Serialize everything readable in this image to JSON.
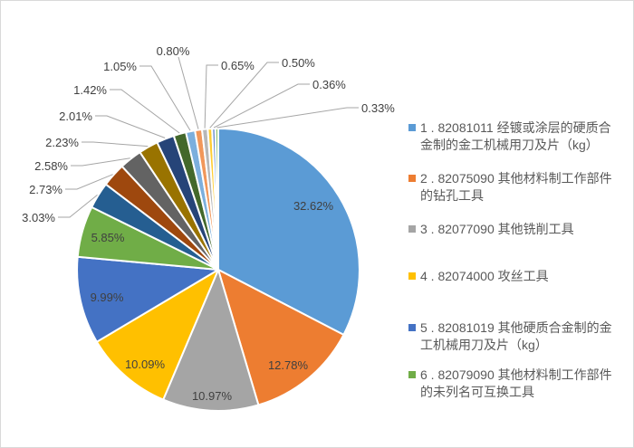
{
  "colors": {
    "background": "#FFFFFF",
    "canvas_border": "#D9D9D9",
    "data_label_text": "#404040",
    "legend_text": "#595959",
    "leader_line": "#A6A6A6",
    "slice_border": "#FFFFFF"
  },
  "chart_data": {
    "type": "pie",
    "title": "",
    "legend_position": "right",
    "label_format": "percent_2dp",
    "rotation_start_deg": 0,
    "direction": "clockwise",
    "slices": [
      {
        "name": "1 . 82081011 经镀或涂层的硬质合金制的金工机械用刀及片（kg）",
        "value": 32.62,
        "color": "#5B9BD5",
        "in_legend": true
      },
      {
        "name": "2 . 82075090 其他材料制工作部件的钻孔工具",
        "value": 12.78,
        "color": "#ED7D31",
        "in_legend": true
      },
      {
        "name": "3 . 82077090 其他铣削工具",
        "value": 10.97,
        "color": "#A5A5A5",
        "in_legend": true
      },
      {
        "name": "4 . 82074000 攻丝工具",
        "value": 10.09,
        "color": "#FFC000",
        "in_legend": true
      },
      {
        "name": "5 . 82081019 其他硬质合金制的金工机械用刀及片（kg）",
        "value": 9.99,
        "color": "#4472C4",
        "in_legend": true
      },
      {
        "name": "6 . 82079090 其他材料制工作部件的未列名可互换工具",
        "value": 5.85,
        "color": "#70AD47",
        "in_legend": true
      },
      {
        "value": 3.03,
        "color": "#255E91",
        "in_legend": false
      },
      {
        "value": 2.73,
        "color": "#9E480E",
        "in_legend": false
      },
      {
        "value": 2.58,
        "color": "#636363",
        "in_legend": false
      },
      {
        "value": 2.23,
        "color": "#997300",
        "in_legend": false
      },
      {
        "value": 2.01,
        "color": "#264478",
        "in_legend": false
      },
      {
        "value": 1.42,
        "color": "#43682B",
        "in_legend": false
      },
      {
        "value": 1.05,
        "color": "#7CAFDD",
        "in_legend": false
      },
      {
        "value": 0.8,
        "color": "#F1975A",
        "in_legend": false
      },
      {
        "value": 0.65,
        "color": "#B7B7B7",
        "in_legend": false
      },
      {
        "value": 0.5,
        "color": "#FFCD33",
        "in_legend": false
      },
      {
        "value": 0.36,
        "color": "#698ED0",
        "in_legend": false
      },
      {
        "value": 0.33,
        "color": "#8CC168",
        "in_legend": false
      }
    ]
  }
}
